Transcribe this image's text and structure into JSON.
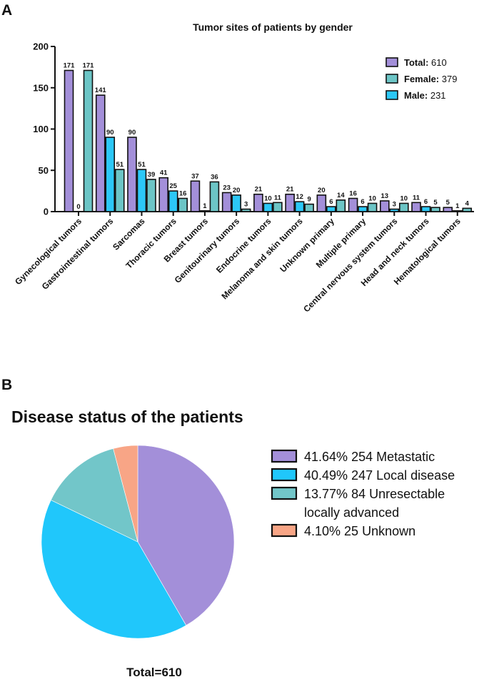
{
  "panel_a": "A",
  "panel_b": "B",
  "chart_data": [
    {
      "type": "bar",
      "title": "Tumor sites of patients by gender",
      "xlabel": "",
      "ylabel": "",
      "ylim": [
        0,
        200
      ],
      "yticks": [
        "0",
        "50",
        "100",
        "150",
        "200"
      ],
      "categories": [
        "Gynecological tumors",
        "Gastrointestinal tumors",
        "Sarcomas",
        "Thoracic tumors",
        "Breast tumors",
        "Genitourinary tumors",
        "Endocrine tumors",
        "Melanoma and skin tumors",
        "Unknown primary",
        "Multiple primary",
        "Central nervous system tumors",
        "Head and neck tumors",
        "Hematological tumors"
      ],
      "series": [
        {
          "name": "Total:",
          "legend_value": "610",
          "color": "#a38fd9",
          "values": [
            171,
            141,
            90,
            41,
            37,
            23,
            21,
            21,
            20,
            16,
            13,
            11,
            5
          ]
        },
        {
          "name": "Male:",
          "legend_value": "231",
          "color": "#2cc8f7",
          "values": [
            0,
            90,
            51,
            25,
            1,
            20,
            10,
            12,
            6,
            6,
            3,
            6,
            1
          ]
        },
        {
          "name": "Female:",
          "legend_value": "379",
          "color": "#6cc5c6",
          "values": [
            171,
            51,
            39,
            16,
            36,
            3,
            11,
            9,
            14,
            10,
            10,
            5,
            4
          ]
        }
      ],
      "legend_order": [
        0,
        2,
        1
      ],
      "legend_position": "top-right"
    },
    {
      "type": "pie",
      "title": "Disease status of the patients",
      "total_label": "Total=610",
      "slices": [
        {
          "label": "Metastatic",
          "percent": "41.64%",
          "count": "254",
          "value": 254,
          "color": "#a38fd9"
        },
        {
          "label": "Local disease",
          "percent": "40.49%",
          "count": "247",
          "value": 247,
          "color": "#20c7fb"
        },
        {
          "label": "Unresectable",
          "label2": "locally advanced",
          "percent": "13.77%",
          "count": "84",
          "value": 84,
          "color": "#72c6c9"
        },
        {
          "label": "Unknown",
          "percent": "4.10%",
          "count": "25",
          "value": 25,
          "color": "#f8a586"
        }
      ],
      "legend_position": "right"
    }
  ]
}
